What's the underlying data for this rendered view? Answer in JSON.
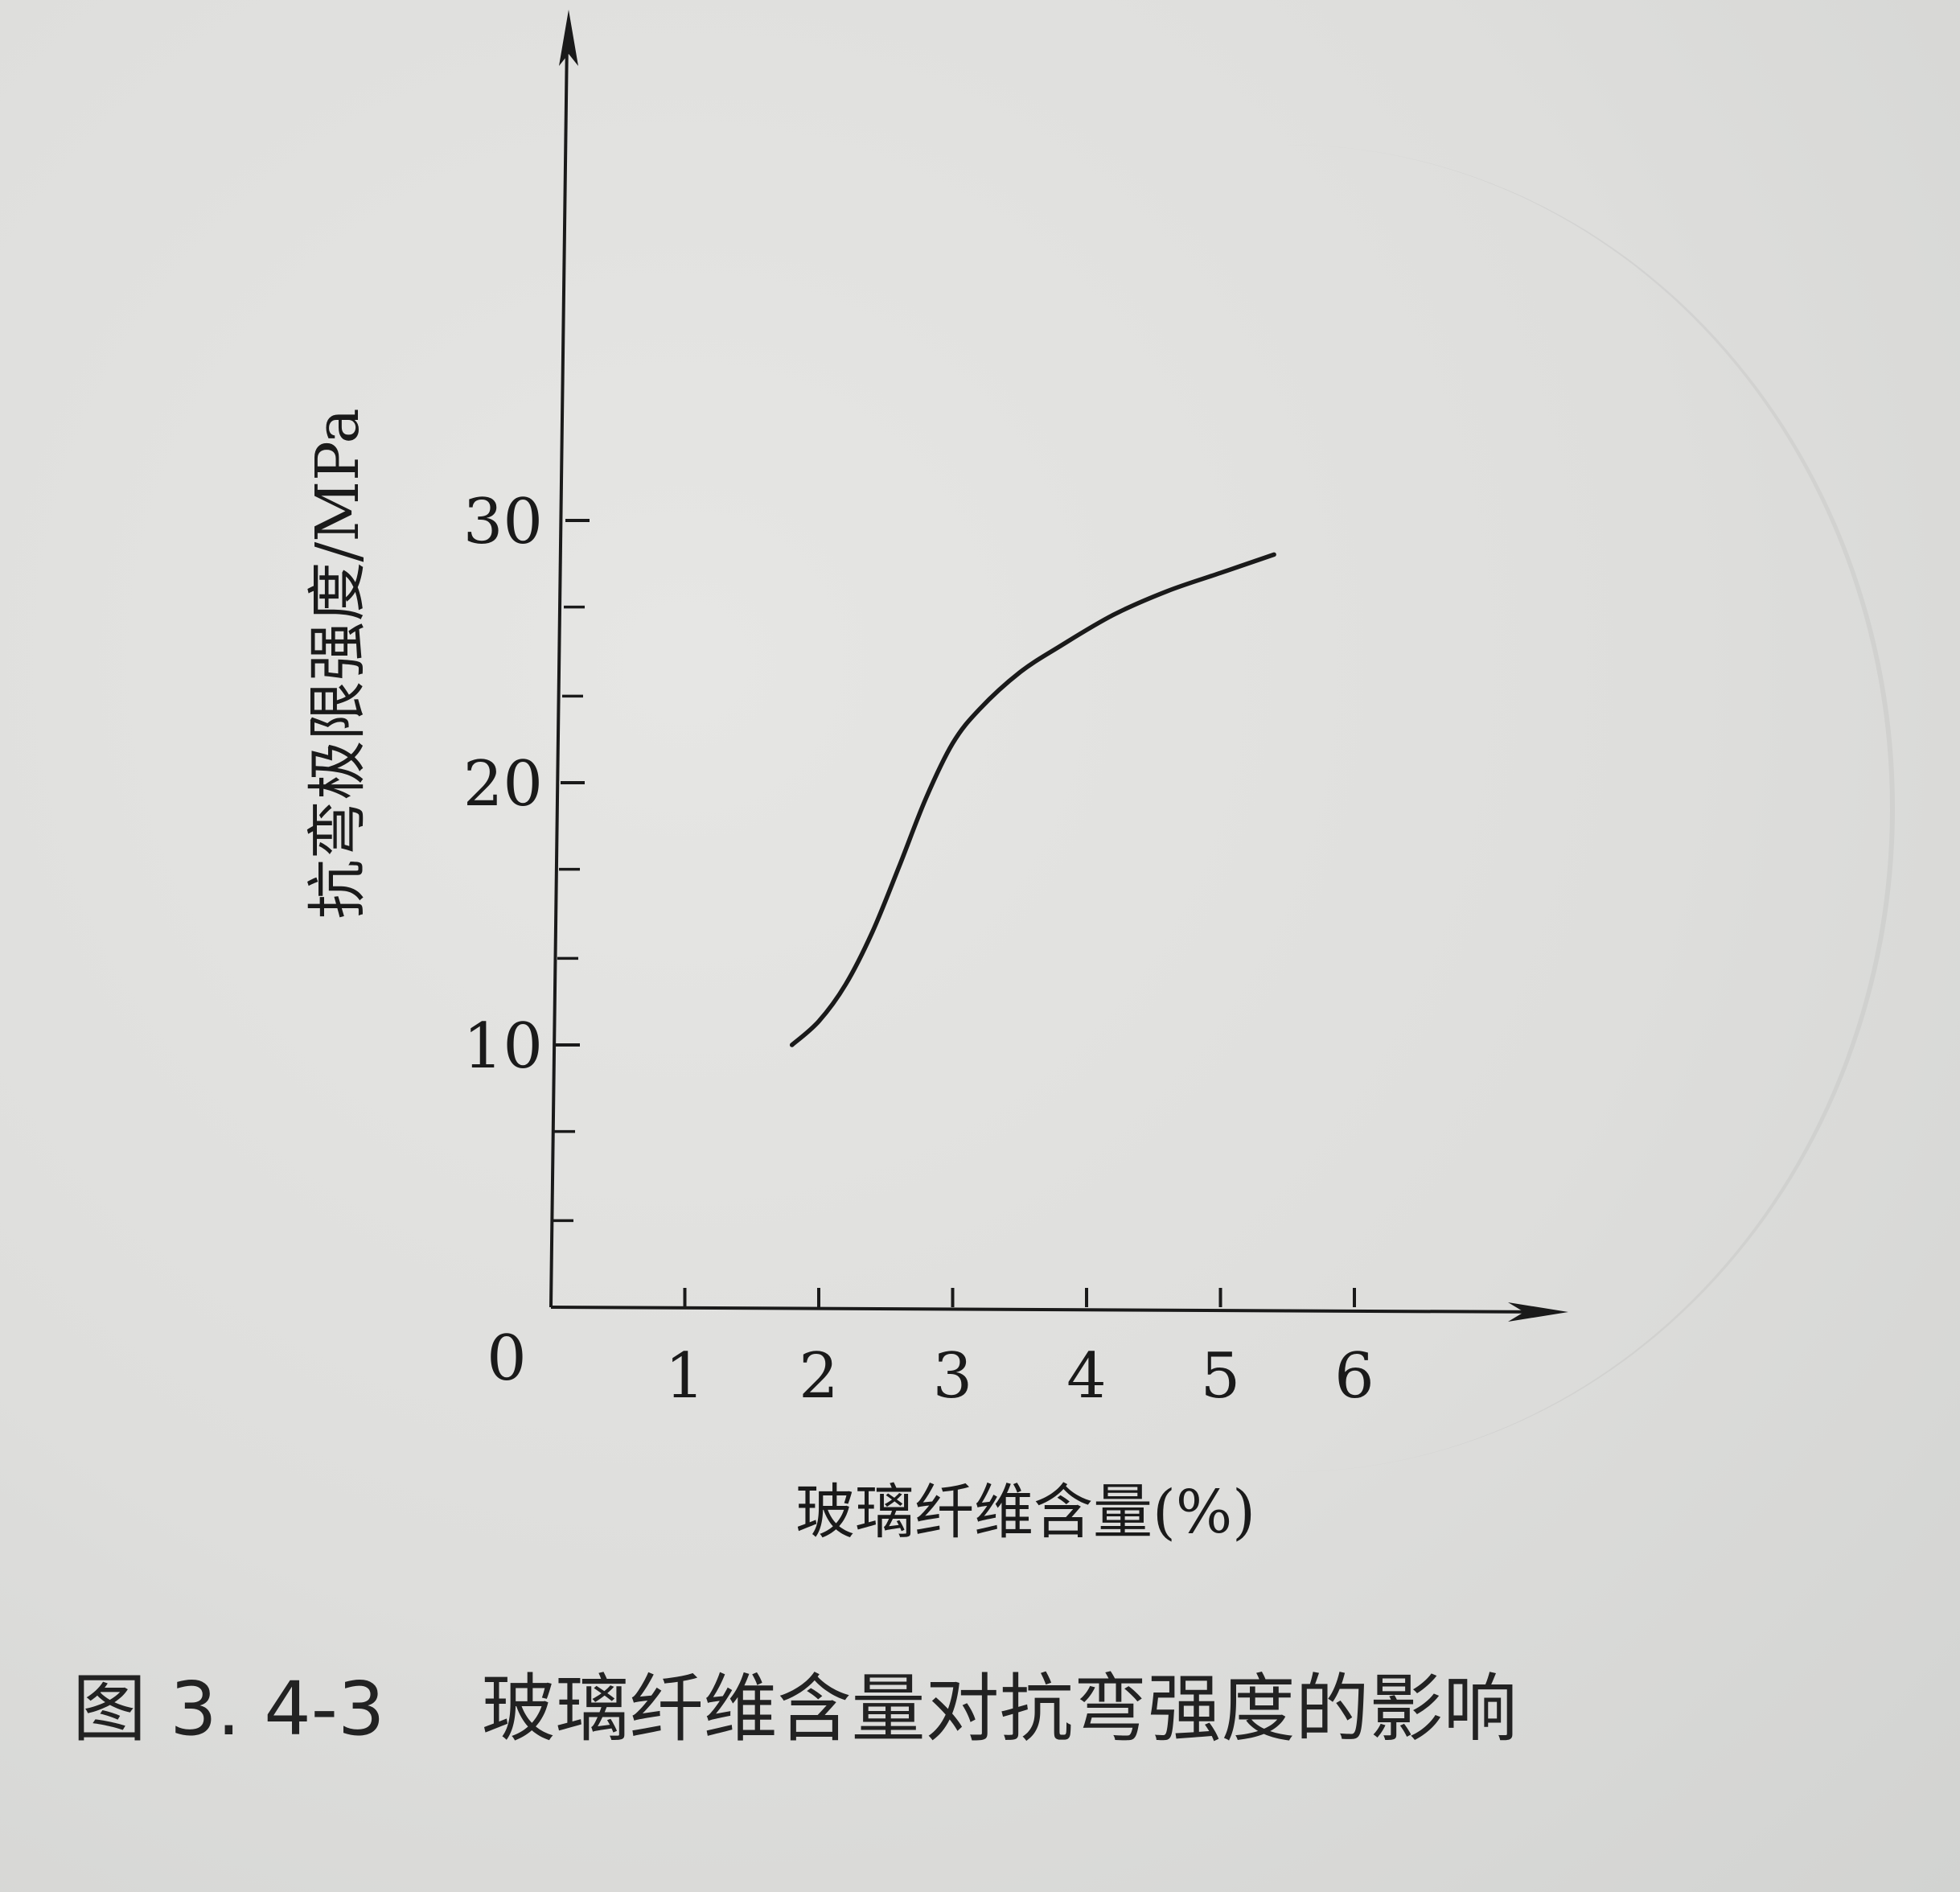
{
  "chart_data": {
    "type": "line",
    "xlabel": "玻璃纤维含量(%)",
    "ylabel": "抗弯极限强度/MPa",
    "xlim": [
      0,
      7.5
    ],
    "ylim": [
      0,
      30
    ],
    "x_ticks": [
      1,
      2,
      3,
      4,
      5,
      6
    ],
    "x_origin_label": "0",
    "y_ticks": [
      10,
      20,
      30
    ],
    "y_minor_ticks": [
      3.3,
      6.7,
      13.3,
      16.7,
      23.3,
      26.7
    ],
    "grid": false,
    "series": [
      {
        "x": [
          1.8,
          2.0,
          2.2,
          2.4,
          2.6,
          2.8,
          3.0,
          3.2,
          3.5,
          3.8,
          4.2,
          4.6,
          5.0,
          5.4
        ],
        "y": [
          10.0,
          10.9,
          12.3,
          14.3,
          16.8,
          19.4,
          21.5,
          22.8,
          24.2,
          25.2,
          26.4,
          27.3,
          28.0,
          28.7
        ]
      }
    ]
  },
  "caption": {
    "figure_number": "图 3. 4-3",
    "text": "玻璃纤维含量对抗弯强度的影响"
  },
  "colors": {
    "ink": "#1a1a1a",
    "paper": "#dedede"
  }
}
